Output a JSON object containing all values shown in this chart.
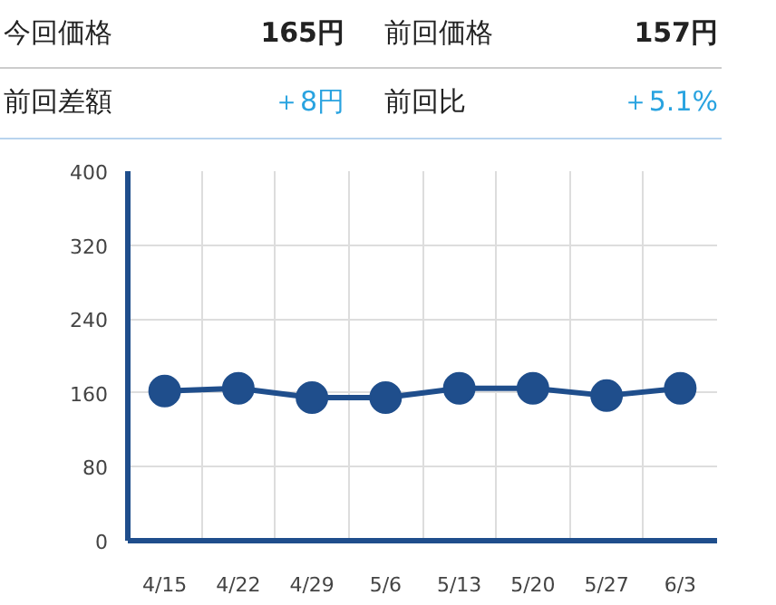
{
  "chart_data": {
    "type": "line",
    "annotations": [
      "今回価格",
      "165円",
      "前回価格",
      "157円",
      "前回差額",
      "＋8円",
      "前回比",
      "＋5.1%"
    ],
    "categories": [
      "4/15",
      "4/22",
      "4/29",
      "5/6",
      "5/13",
      "5/20",
      "5/27",
      "6/3"
    ],
    "series": [
      {
        "color": "#1f4e8c",
        "values": [
          162,
          165,
          155,
          155,
          165,
          165,
          157,
          165
        ]
      }
    ],
    "ylim": [
      0,
      400
    ],
    "yticks": [
      0,
      80,
      160,
      240,
      320,
      400
    ],
    "grid": true,
    "marker": "circle",
    "line_style": "solid"
  }
}
